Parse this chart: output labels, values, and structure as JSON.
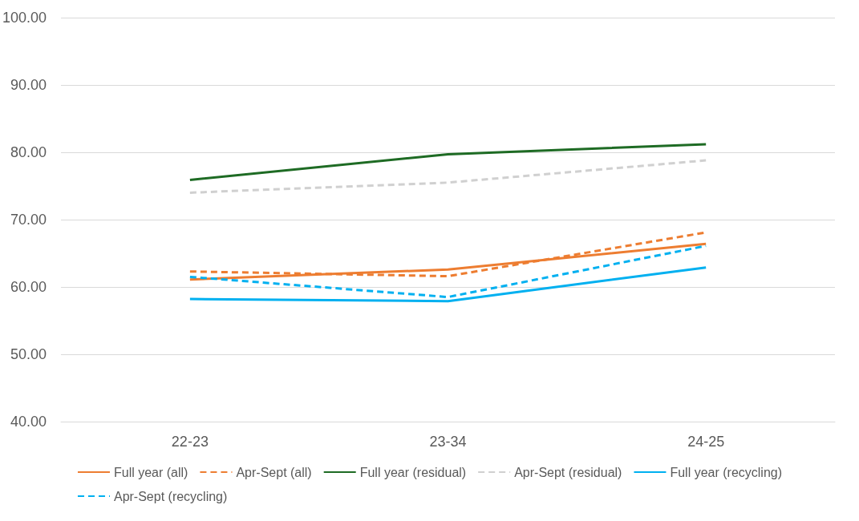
{
  "chart_data": {
    "type": "line",
    "categories": [
      "22-23",
      "23-34",
      "24-25"
    ],
    "series": [
      {
        "name": "Full year (all)",
        "color": "#ed7d31",
        "line_style": "solid",
        "values": [
          61.1,
          62.6,
          66.4
        ]
      },
      {
        "name": "Apr-Sept (all)",
        "color": "#ed7d31",
        "line_style": "dashed",
        "values": [
          62.3,
          61.6,
          68.1
        ]
      },
      {
        "name": "Full year (residual)",
        "color": "#1e6b24",
        "line_style": "solid",
        "values": [
          75.9,
          79.7,
          81.2
        ]
      },
      {
        "name": "Apr-Sept (residual)",
        "color": "#d0d0d0",
        "line_style": "dashed",
        "values": [
          74.0,
          75.5,
          78.8
        ]
      },
      {
        "name": "Full year (recycling)",
        "color": "#00b0f0",
        "line_style": "solid",
        "values": [
          58.2,
          57.9,
          62.9
        ]
      },
      {
        "name": "Apr-Sept (recycling)",
        "color": "#00b0f0",
        "line_style": "dashed",
        "values": [
          61.5,
          58.5,
          66.1
        ]
      }
    ],
    "ylim": [
      40,
      100
    ],
    "yticks": [
      {
        "value": 40,
        "label": "40.00"
      },
      {
        "value": 50,
        "label": "50.00"
      },
      {
        "value": 60,
        "label": "60.00"
      },
      {
        "value": 70,
        "label": "70.00"
      },
      {
        "value": 80,
        "label": "80.00"
      },
      {
        "value": 90,
        "label": "90.00"
      },
      {
        "value": 100,
        "label": "100.00"
      }
    ],
    "grid": "y",
    "legend": "bottom",
    "marker": "none"
  }
}
